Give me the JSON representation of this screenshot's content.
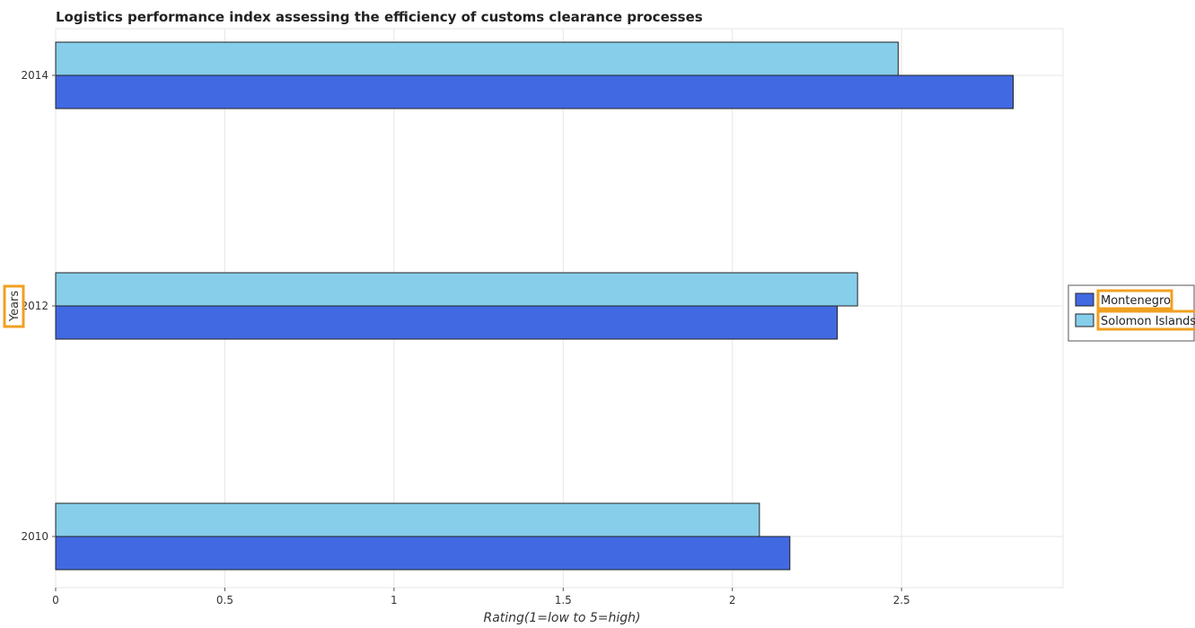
{
  "chart_data": {
    "type": "bar",
    "orientation": "horizontal",
    "title": "Logistics performance index assessing the efficiency of customs clearance processes",
    "xlabel": "Rating(1=low to 5=high)",
    "ylabel": "Years",
    "categories": [
      "2010",
      "2012",
      "2014"
    ],
    "xlim": [
      0,
      3
    ],
    "xticks": [
      "0",
      "0.5",
      "1",
      "1.5",
      "2",
      "2.5"
    ],
    "xtick_values": [
      0,
      0.5,
      1,
      1.5,
      2,
      2.5
    ],
    "grid": true,
    "legend_position": "right",
    "series": [
      {
        "name": "Montenegro",
        "color": "#4169e1",
        "values": [
          2.17,
          2.31,
          2.83
        ]
      },
      {
        "name": "Solomon Islands",
        "color": "#87ceeb",
        "values": [
          2.08,
          2.37,
          2.49
        ]
      }
    ]
  }
}
